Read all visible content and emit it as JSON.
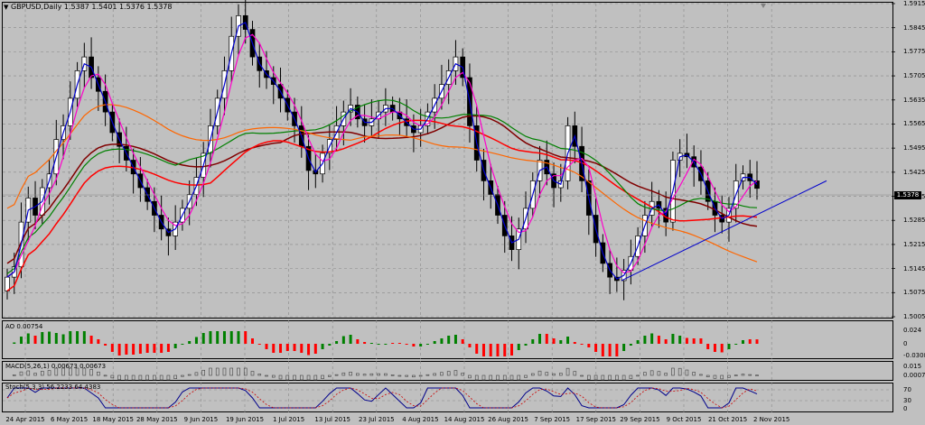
{
  "header": {
    "symbol": "GBPUSD,Daily",
    "ohlc": "1.5387 1.5401 1.5376 1.5378"
  },
  "price_axis": {
    "labels": [
      "1.5915",
      "1.5845",
      "1.5775",
      "1.5705",
      "1.5635",
      "1.5565",
      "1.5495",
      "1.5425",
      "1.5355",
      "1.5285",
      "1.5215",
      "1.5145",
      "1.5075",
      "1.5005"
    ],
    "current": "1.5378"
  },
  "indicators": {
    "ao": {
      "title": "AO 0.00754",
      "labels": [
        "0.024",
        "0",
        "-0.03089"
      ]
    },
    "macd": {
      "title": "MACD(5,26,1) 0.00673 0.00673",
      "labels": [
        "0.015",
        "0.000747"
      ]
    },
    "stoch": {
      "title": "Stoch(5,3,3) 56.2233 64.4383",
      "labels": [
        "70",
        "30",
        "0"
      ]
    }
  },
  "dates": [
    "24 Apr 2015",
    "6 May 2015",
    "18 May 2015",
    "28 May 2015",
    "9 Jun 2015",
    "19 Jun 2015",
    "1 Jul 2015",
    "13 Jul 2015",
    "23 Jul 2015",
    "4 Aug 2015",
    "14 Aug 2015",
    "26 Aug 2015",
    "7 Sep 2015",
    "17 Sep 2015",
    "29 Sep 2015",
    "9 Oct 2015",
    "21 Oct 2015",
    "2 Nov 2015"
  ],
  "colors": {
    "bull": "#ffffff",
    "bear": "#000000",
    "ma_fast": "#0000cc",
    "ma_pink": "#ff00cc",
    "ma_green": "#008000",
    "ma_red": "#ff0000",
    "ma_maroon": "#800000",
    "ma_orange": "#ff6600",
    "trendline": "#0000cc",
    "ao_up": "#008000",
    "ao_down": "#ff0000"
  },
  "chart_data": {
    "type": "candlestick",
    "title": "GBPUSD,Daily",
    "ylim": [
      1.5005,
      1.5915
    ],
    "closes": [
      1.512,
      1.515,
      1.528,
      1.535,
      1.53,
      1.538,
      1.542,
      1.552,
      1.556,
      1.564,
      1.572,
      1.576,
      1.57,
      1.566,
      1.56,
      1.554,
      1.55,
      1.546,
      1.542,
      1.538,
      1.534,
      1.53,
      1.526,
      1.524,
      1.528,
      1.532,
      1.536,
      1.541,
      1.548,
      1.556,
      1.564,
      1.572,
      1.582,
      1.588,
      1.584,
      1.576,
      1.572,
      1.57,
      1.568,
      1.564,
      1.56,
      1.556,
      1.55,
      1.543,
      1.542,
      1.548,
      1.552,
      1.556,
      1.56,
      1.562,
      1.558,
      1.556,
      1.558,
      1.56,
      1.562,
      1.56,
      1.558,
      1.556,
      1.554,
      1.556,
      1.56,
      1.564,
      1.568,
      1.572,
      1.576,
      1.57,
      1.556,
      1.546,
      1.54,
      1.536,
      1.53,
      1.524,
      1.52,
      1.526,
      1.532,
      1.54,
      1.546,
      1.542,
      1.538,
      1.54,
      1.556,
      1.55,
      1.54,
      1.53,
      1.522,
      1.516,
      1.512,
      1.511,
      1.514,
      1.518,
      1.524,
      1.53,
      1.534,
      1.532,
      1.528,
      1.546,
      1.548,
      1.547,
      1.544,
      1.54,
      1.534,
      1.53,
      1.528,
      1.532,
      1.54,
      1.542,
      1.54,
      1.5378
    ]
  }
}
